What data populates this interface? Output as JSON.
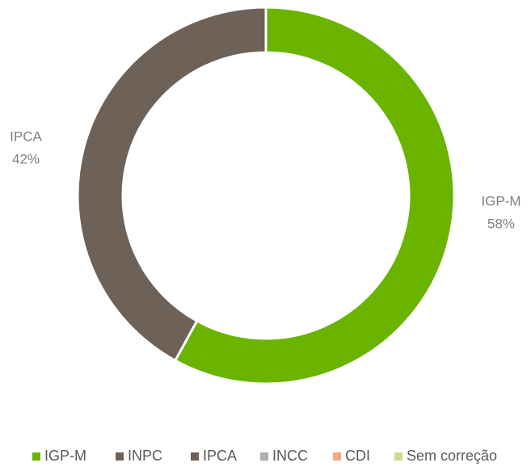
{
  "chart_data": {
    "type": "donut",
    "categories": [
      "IGP-M",
      "INPC",
      "IPCA",
      "INCC",
      "CDI",
      "Sem correção"
    ],
    "values": [
      58,
      0,
      42,
      0,
      0,
      0
    ],
    "value_labels": [
      "58%",
      null,
      "42%",
      null,
      null,
      null
    ],
    "colors": [
      "#6ab400",
      "#6f6259",
      "#6e6158",
      "#b5aea8",
      "#f4a582",
      "#c6df8e"
    ],
    "legend": "bottom"
  }
}
